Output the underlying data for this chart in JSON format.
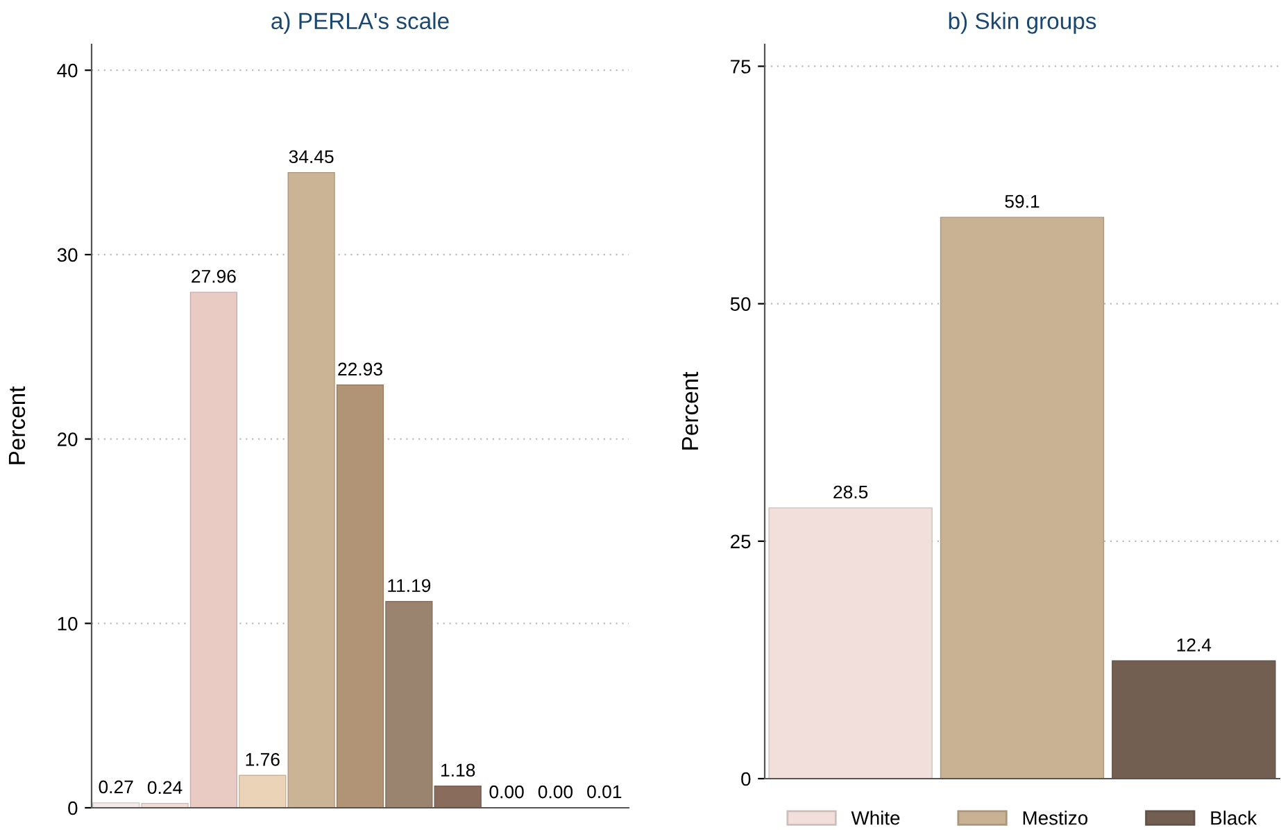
{
  "chart_data": [
    {
      "type": "bar",
      "title": "a) PERLA's scale",
      "ylabel": "Percent",
      "categories": [
        null,
        null,
        null,
        null,
        null,
        null,
        null,
        null,
        null,
        null,
        null
      ],
      "values": [
        0.27,
        0.24,
        27.96,
        1.76,
        34.45,
        22.93,
        11.19,
        1.18,
        0.0,
        0.0,
        0.01
      ],
      "value_labels": [
        "0.27",
        "0.24",
        "27.96",
        "1.76",
        "34.45",
        "22.93",
        "11.19",
        "1.18",
        "0.00",
        "0.00",
        "0.01"
      ],
      "colors": [
        "#f5eaea",
        "#f2dcd8",
        "#eacbc4",
        "#ead3b6",
        "#cbb395",
        "#b09475",
        "#9a8470",
        "#8a6c5c",
        "#6e5446",
        "#5a4438",
        "#9a9a9a"
      ],
      "ylim": [
        0,
        41.4
      ],
      "yticks": [
        0,
        10,
        20,
        30,
        40
      ],
      "grid": "y",
      "tick_labels": "y"
    },
    {
      "type": "bar",
      "title": "b) Skin groups",
      "ylabel": "Percent",
      "categories": [
        null,
        null,
        null
      ],
      "series": [
        {
          "name": "White",
          "color": "#f2dfdc",
          "values": [
            28.5,
            null,
            null
          ]
        },
        {
          "name": "Mestizo",
          "color": "#c9b193",
          "values": [
            null,
            59.1,
            null
          ]
        },
        {
          "name": "Black",
          "color": "#735f52",
          "values": [
            null,
            null,
            12.4
          ]
        }
      ],
      "data_labels": true,
      "ylim": [
        0,
        77.3
      ],
      "yticks": [
        0,
        25,
        50,
        75
      ],
      "grid": "y",
      "tick_labels": "y",
      "legend": "bottom"
    }
  ]
}
